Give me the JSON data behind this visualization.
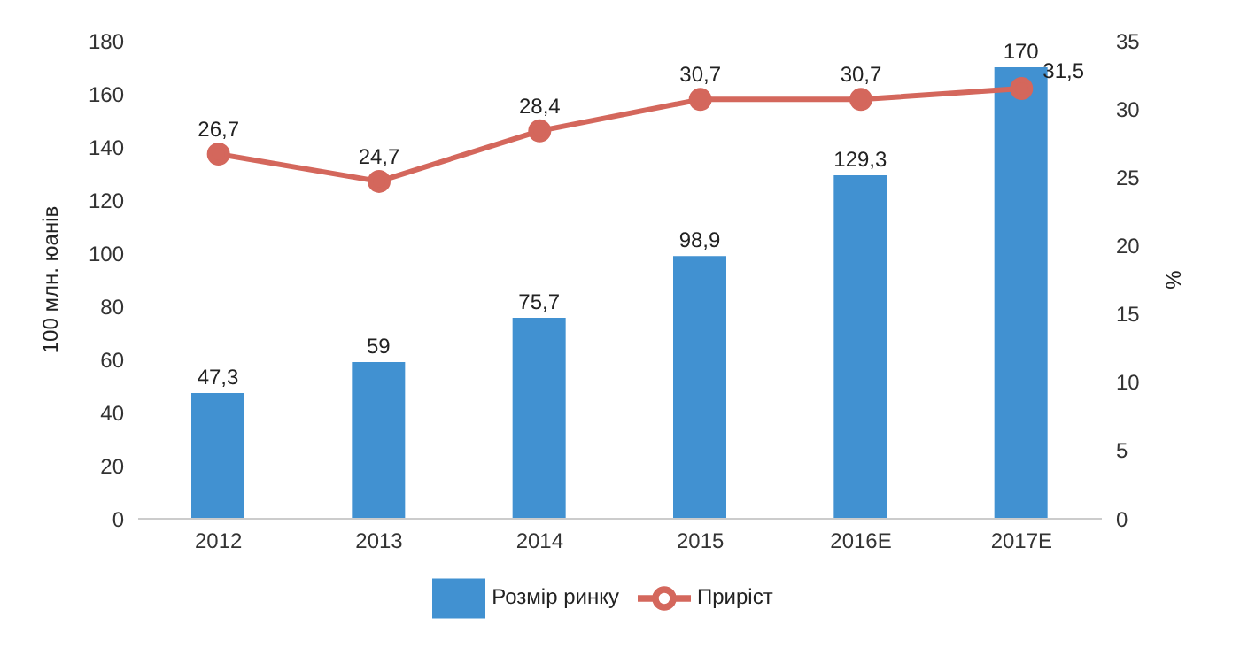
{
  "chart_data": {
    "type": "bar",
    "categories": [
      "2012",
      "2013",
      "2014",
      "2015",
      "2016E",
      "2017E"
    ],
    "ylabel": "100 млн. юанів",
    "y2label": "%",
    "ylim": [
      0,
      180
    ],
    "yticks": [
      0,
      20,
      40,
      60,
      80,
      100,
      120,
      140,
      160,
      180
    ],
    "y2lim": [
      0,
      35
    ],
    "y2ticks": [
      0,
      5,
      10,
      15,
      20,
      25,
      30,
      35
    ],
    "grid": false,
    "legend": "bottom",
    "marker": "circle",
    "series": [
      {
        "name": "Розмір ринку",
        "color": "#4191d1",
        "values": [
          47.3,
          59,
          75.7,
          98.9,
          129.3,
          170
        ],
        "value_labels": [
          "47,3",
          "59",
          "75,7",
          "98,9",
          "129,3",
          "170"
        ]
      },
      {
        "type": "line",
        "name": "Приріст",
        "color": "#d4675c",
        "axis": "y2",
        "values": [
          26.7,
          24.7,
          28.4,
          30.7,
          30.7,
          31.5
        ],
        "value_labels": [
          "26,7",
          "24,7",
          "28,4",
          "30,7",
          "30,7",
          "31,5"
        ]
      }
    ]
  }
}
